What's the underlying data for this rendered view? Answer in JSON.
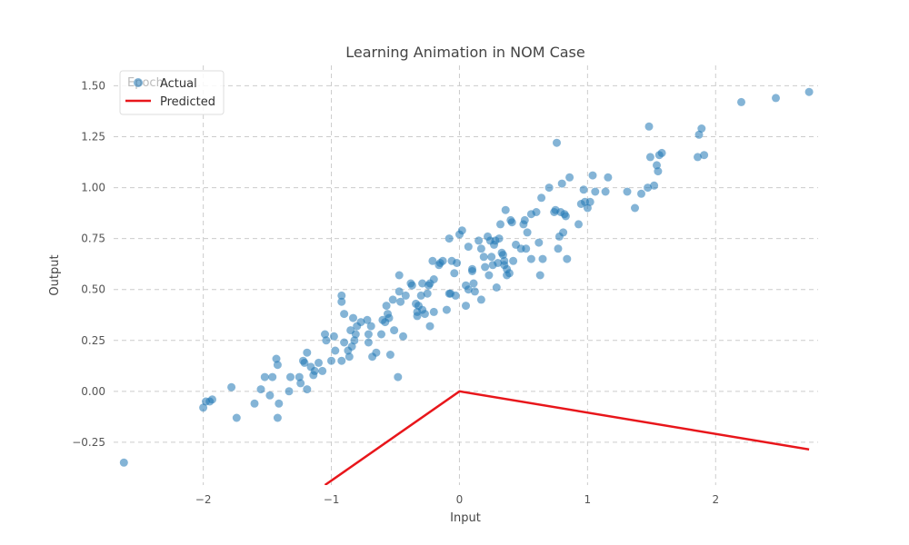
{
  "chart_data": {
    "type": "scatter",
    "title": "Learning Animation in NOM Case",
    "xlabel": "Input",
    "ylabel": "Output",
    "xlim": [
      -2.7,
      2.8
    ],
    "ylim": [
      -0.46,
      1.6
    ],
    "x_ticks": [
      -2,
      -1,
      0,
      1,
      2
    ],
    "x_tick_labels": [
      "−2",
      "−1",
      "0",
      "1",
      "2"
    ],
    "y_ticks": [
      -0.25,
      0.0,
      0.25,
      0.5,
      0.75,
      1.0,
      1.25,
      1.5
    ],
    "y_tick_labels": [
      "−0.25",
      "0.00",
      "0.25",
      "0.50",
      "0.75",
      "1.00",
      "1.25",
      "1.50"
    ],
    "grid": true,
    "legend_position": "top-left",
    "overlay_text": "Epoch",
    "colors": {
      "actual": "#1f77b4",
      "predicted": "#e8161b",
      "grid": "#cccccc"
    },
    "series": [
      {
        "name": "Actual",
        "kind": "scatter",
        "points": [
          [
            -2.62,
            -0.35
          ],
          [
            -2.0,
            -0.08
          ],
          [
            -1.98,
            -0.05
          ],
          [
            -1.95,
            -0.05
          ],
          [
            -1.93,
            -0.04
          ],
          [
            -1.78,
            0.02
          ],
          [
            -1.74,
            -0.13
          ],
          [
            -1.6,
            -0.06
          ],
          [
            -1.55,
            0.01
          ],
          [
            -1.52,
            0.07
          ],
          [
            -1.48,
            -0.02
          ],
          [
            -1.46,
            0.07
          ],
          [
            -1.43,
            0.16
          ],
          [
            -1.42,
            0.13
          ],
          [
            -1.42,
            -0.13
          ],
          [
            -1.41,
            -0.06
          ],
          [
            -1.32,
            0.07
          ],
          [
            -1.33,
            0.0
          ],
          [
            -1.25,
            0.07
          ],
          [
            -1.24,
            0.04
          ],
          [
            -1.22,
            0.15
          ],
          [
            -1.21,
            0.14
          ],
          [
            -1.19,
            0.19
          ],
          [
            -1.19,
            0.01
          ],
          [
            -1.16,
            0.12
          ],
          [
            -1.14,
            0.08
          ],
          [
            -1.13,
            0.1
          ],
          [
            -1.1,
            0.14
          ],
          [
            -1.07,
            0.1
          ],
          [
            -1.05,
            0.28
          ],
          [
            -1.04,
            0.25
          ],
          [
            -1.0,
            0.15
          ],
          [
            -0.98,
            0.27
          ],
          [
            -0.97,
            0.2
          ],
          [
            -0.92,
            0.15
          ],
          [
            -0.92,
            0.47
          ],
          [
            -0.92,
            0.44
          ],
          [
            -0.9,
            0.38
          ],
          [
            -0.9,
            0.24
          ],
          [
            -0.87,
            0.2
          ],
          [
            -0.86,
            0.17
          ],
          [
            -0.85,
            0.3
          ],
          [
            -0.84,
            0.22
          ],
          [
            -0.83,
            0.36
          ],
          [
            -0.82,
            0.25
          ],
          [
            -0.81,
            0.28
          ],
          [
            -0.8,
            0.32
          ],
          [
            -0.77,
            0.34
          ],
          [
            -0.72,
            0.35
          ],
          [
            -0.71,
            0.28
          ],
          [
            -0.71,
            0.24
          ],
          [
            -0.69,
            0.32
          ],
          [
            -0.68,
            0.17
          ],
          [
            -0.65,
            0.19
          ],
          [
            -0.61,
            0.28
          ],
          [
            -0.6,
            0.35
          ],
          [
            -0.58,
            0.34
          ],
          [
            -0.57,
            0.42
          ],
          [
            -0.56,
            0.38
          ],
          [
            -0.55,
            0.36
          ],
          [
            -0.54,
            0.18
          ],
          [
            -0.52,
            0.45
          ],
          [
            -0.51,
            0.3
          ],
          [
            -0.48,
            0.07
          ],
          [
            -0.47,
            0.57
          ],
          [
            -0.47,
            0.49
          ],
          [
            -0.46,
            0.44
          ],
          [
            -0.44,
            0.27
          ],
          [
            -0.42,
            0.47
          ],
          [
            -0.38,
            0.53
          ],
          [
            -0.37,
            0.52
          ],
          [
            -0.34,
            0.43
          ],
          [
            -0.33,
            0.37
          ],
          [
            -0.33,
            0.39
          ],
          [
            -0.32,
            0.42
          ],
          [
            -0.3,
            0.47
          ],
          [
            -0.29,
            0.53
          ],
          [
            -0.29,
            0.4
          ],
          [
            -0.27,
            0.38
          ],
          [
            -0.25,
            0.48
          ],
          [
            -0.24,
            0.52
          ],
          [
            -0.23,
            0.53
          ],
          [
            -0.23,
            0.32
          ],
          [
            -0.21,
            0.64
          ],
          [
            -0.2,
            0.55
          ],
          [
            -0.2,
            0.39
          ],
          [
            -0.16,
            0.62
          ],
          [
            -0.15,
            0.63
          ],
          [
            -0.13,
            0.64
          ],
          [
            -0.1,
            0.4
          ],
          [
            -0.08,
            0.48
          ],
          [
            -0.08,
            0.75
          ],
          [
            -0.07,
            0.48
          ],
          [
            -0.06,
            0.64
          ],
          [
            -0.04,
            0.58
          ],
          [
            -0.03,
            0.47
          ],
          [
            -0.02,
            0.63
          ],
          [
            0.0,
            0.77
          ],
          [
            0.02,
            0.79
          ],
          [
            0.05,
            0.52
          ],
          [
            0.05,
            0.42
          ],
          [
            0.07,
            0.71
          ],
          [
            0.07,
            0.5
          ],
          [
            0.1,
            0.6
          ],
          [
            0.1,
            0.59
          ],
          [
            0.11,
            0.53
          ],
          [
            0.12,
            0.49
          ],
          [
            0.15,
            0.74
          ],
          [
            0.17,
            0.7
          ],
          [
            0.17,
            0.45
          ],
          [
            0.19,
            0.66
          ],
          [
            0.2,
            0.61
          ],
          [
            0.22,
            0.76
          ],
          [
            0.23,
            0.57
          ],
          [
            0.24,
            0.74
          ],
          [
            0.25,
            0.66
          ],
          [
            0.26,
            0.62
          ],
          [
            0.27,
            0.72
          ],
          [
            0.28,
            0.74
          ],
          [
            0.29,
            0.51
          ],
          [
            0.3,
            0.63
          ],
          [
            0.31,
            0.75
          ],
          [
            0.32,
            0.82
          ],
          [
            0.33,
            0.68
          ],
          [
            0.34,
            0.67
          ],
          [
            0.35,
            0.64
          ],
          [
            0.35,
            0.62
          ],
          [
            0.36,
            0.89
          ],
          [
            0.37,
            0.6
          ],
          [
            0.37,
            0.57
          ],
          [
            0.39,
            0.58
          ],
          [
            0.4,
            0.84
          ],
          [
            0.41,
            0.83
          ],
          [
            0.42,
            0.64
          ],
          [
            0.44,
            0.72
          ],
          [
            0.48,
            0.7
          ],
          [
            0.5,
            0.82
          ],
          [
            0.51,
            0.84
          ],
          [
            0.52,
            0.7
          ],
          [
            0.53,
            0.78
          ],
          [
            0.56,
            0.87
          ],
          [
            0.56,
            0.65
          ],
          [
            0.6,
            0.88
          ],
          [
            0.62,
            0.73
          ],
          [
            0.63,
            0.57
          ],
          [
            0.64,
            0.95
          ],
          [
            0.65,
            0.65
          ],
          [
            0.7,
            1.0
          ],
          [
            0.74,
            0.88
          ],
          [
            0.75,
            0.89
          ],
          [
            0.76,
            1.22
          ],
          [
            0.77,
            0.7
          ],
          [
            0.78,
            0.76
          ],
          [
            0.79,
            0.88
          ],
          [
            0.8,
            1.02
          ],
          [
            0.81,
            0.78
          ],
          [
            0.82,
            0.87
          ],
          [
            0.83,
            0.86
          ],
          [
            0.84,
            0.65
          ],
          [
            0.86,
            1.05
          ],
          [
            0.93,
            0.82
          ],
          [
            0.95,
            0.92
          ],
          [
            0.97,
            0.99
          ],
          [
            0.98,
            0.93
          ],
          [
            1.0,
            0.9
          ],
          [
            1.02,
            0.93
          ],
          [
            1.04,
            1.06
          ],
          [
            1.06,
            0.98
          ],
          [
            1.14,
            0.98
          ],
          [
            1.16,
            1.05
          ],
          [
            1.31,
            0.98
          ],
          [
            1.37,
            0.9
          ],
          [
            1.42,
            0.97
          ],
          [
            1.47,
            1.0
          ],
          [
            1.48,
            1.3
          ],
          [
            1.49,
            1.15
          ],
          [
            1.52,
            1.01
          ],
          [
            1.54,
            1.11
          ],
          [
            1.55,
            1.08
          ],
          [
            1.56,
            1.16
          ],
          [
            1.58,
            1.17
          ],
          [
            1.86,
            1.15
          ],
          [
            1.87,
            1.26
          ],
          [
            1.89,
            1.29
          ],
          [
            1.91,
            1.16
          ],
          [
            2.2,
            1.42
          ],
          [
            2.47,
            1.44
          ],
          [
            2.73,
            1.47
          ]
        ]
      },
      {
        "name": "Predicted",
        "kind": "line",
        "points": [
          [
            -1.05,
            -0.46
          ],
          [
            0.0,
            0.0
          ],
          [
            2.73,
            -0.285
          ]
        ]
      }
    ]
  }
}
